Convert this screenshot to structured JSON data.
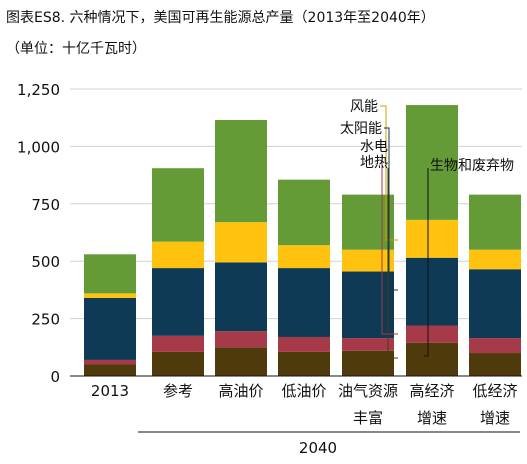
{
  "header": {
    "title": "图表ES8. 六种情况下，美国可再生能源总产量（2013年至2040年）",
    "subtitle": "（单位：十亿千瓦时）"
  },
  "colors": {
    "geothermal": "#4f3a0b",
    "hydro": "#a73a48",
    "solar": "#0e3a55",
    "wind": "#ffc20e",
    "biomass": "#659b36"
  },
  "chart_data": {
    "type": "bar",
    "stacked": true,
    "categories": [
      "2013",
      "参考",
      "高油价",
      "低油价",
      "油气资源丰富",
      "高经济增速",
      "低经济增速"
    ],
    "category_labels": [
      [
        "2013"
      ],
      [
        "参考"
      ],
      [
        "高油价"
      ],
      [
        "低油价"
      ],
      [
        "油气资源",
        "丰富"
      ],
      [
        "高经济",
        "增速"
      ],
      [
        "低经济",
        "增速"
      ]
    ],
    "group_label": "2040",
    "ylim": [
      0,
      1250
    ],
    "yticks": [
      0,
      250,
      500,
      750,
      1000,
      1250
    ],
    "ytick_labels": [
      "0",
      "250",
      "500",
      "750",
      "1,000",
      "1,250"
    ],
    "grid": true,
    "series": [
      {
        "name": "地热",
        "color_key": "geothermal",
        "values": [
          50,
          105,
          125,
          105,
          110,
          145,
          100
        ]
      },
      {
        "name": "水电",
        "color_key": "hydro",
        "values": [
          20,
          70,
          70,
          65,
          55,
          75,
          65
        ]
      },
      {
        "name": "太阳能",
        "color_key": "solar",
        "values": [
          270,
          295,
          300,
          300,
          290,
          295,
          300
        ]
      },
      {
        "name": "风能",
        "color_key": "wind",
        "values": [
          20,
          115,
          175,
          100,
          95,
          165,
          85
        ]
      },
      {
        "name": "生物和废弃物",
        "color_key": "biomass",
        "values": [
          170,
          320,
          445,
          285,
          240,
          500,
          240
        ]
      }
    ]
  }
}
